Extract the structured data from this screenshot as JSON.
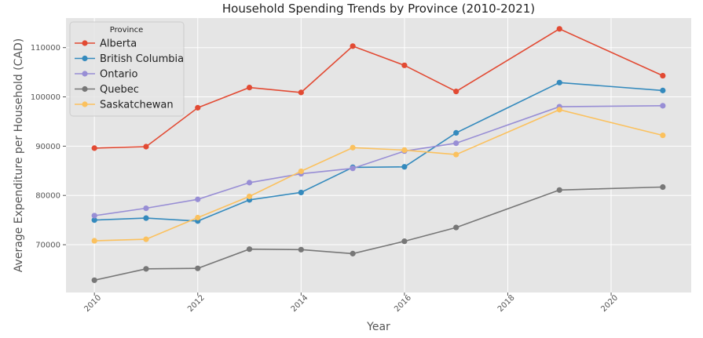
{
  "chart_data": {
    "type": "line",
    "title": "Household Spending Trends by Province (2010-2021)",
    "xlabel": "Year",
    "ylabel": "Average Expenditure per Household (CAD)",
    "x": [
      2010,
      2011,
      2012,
      2013,
      2014,
      2015,
      2016,
      2017,
      2019,
      2021
    ],
    "xlim": [
      2009.45,
      2021.55
    ],
    "ylim": [
      60300,
      116000
    ],
    "xticks": [
      "2010",
      "2012",
      "2014",
      "2016",
      "2018",
      "2020"
    ],
    "yticks": [
      "70000",
      "80000",
      "90000",
      "100000",
      "110000"
    ],
    "grid": true,
    "legend": {
      "title": "Province",
      "placement": "upper-left"
    },
    "series": [
      {
        "name": "Alberta",
        "color": "#E24A33",
        "values": [
          89600,
          89900,
          97800,
          101900,
          100900,
          110300,
          106400,
          101100,
          113800,
          104300
        ]
      },
      {
        "name": "British Columbia",
        "color": "#348ABD",
        "values": [
          75000,
          75400,
          74800,
          79100,
          80600,
          85700,
          85800,
          92700,
          102900,
          101300
        ]
      },
      {
        "name": "Ontario",
        "color": "#988ED5",
        "values": [
          75900,
          77400,
          79200,
          82600,
          84400,
          85500,
          89000,
          90600,
          98000,
          98200
        ]
      },
      {
        "name": "Quebec",
        "color": "#777777",
        "values": [
          62800,
          65100,
          65200,
          69100,
          69000,
          68200,
          70700,
          73500,
          81100,
          81700
        ]
      },
      {
        "name": "Saskatchewan",
        "color": "#FBC15E",
        "values": [
          70800,
          71100,
          75500,
          79800,
          84900,
          89700,
          89200,
          88300,
          97400,
          92200
        ]
      }
    ]
  }
}
